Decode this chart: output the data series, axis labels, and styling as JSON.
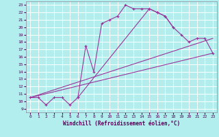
{
  "xlabel": "Windchill (Refroidissement éolien,°C)",
  "bg_color": "#b2eeee",
  "line_color": "#993399",
  "xlim": [
    -0.5,
    23.5
  ],
  "ylim": [
    9,
    23.5
  ],
  "xticks": [
    0,
    1,
    2,
    3,
    4,
    5,
    6,
    7,
    8,
    9,
    10,
    11,
    12,
    13,
    14,
    15,
    16,
    17,
    18,
    19,
    20,
    21,
    22,
    23
  ],
  "yticks": [
    9,
    10,
    11,
    12,
    13,
    14,
    15,
    16,
    17,
    18,
    19,
    20,
    21,
    22,
    23
  ],
  "curve1_x": [
    0,
    1,
    2,
    3,
    4,
    5,
    6,
    7,
    8,
    9,
    10,
    11,
    12,
    13,
    14,
    15,
    16,
    17,
    18
  ],
  "curve1_y": [
    10.5,
    10.5,
    9.5,
    10.5,
    10.5,
    9.5,
    10.5,
    17.5,
    14.0,
    20.5,
    21.0,
    21.5,
    23.0,
    22.5,
    22.5,
    22.5,
    22.0,
    21.5,
    20.0
  ],
  "curve2_x": [
    6,
    15,
    16,
    17,
    18,
    19,
    20,
    21,
    22,
    23
  ],
  "curve2_y": [
    10.5,
    22.5,
    22.0,
    21.5,
    20.0,
    19.0,
    18.0,
    18.5,
    18.5,
    16.5
  ],
  "line3_x": [
    0,
    23
  ],
  "line3_y": [
    10.5,
    16.5
  ],
  "line4_x": [
    0,
    23
  ],
  "line4_y": [
    10.5,
    18.5
  ]
}
